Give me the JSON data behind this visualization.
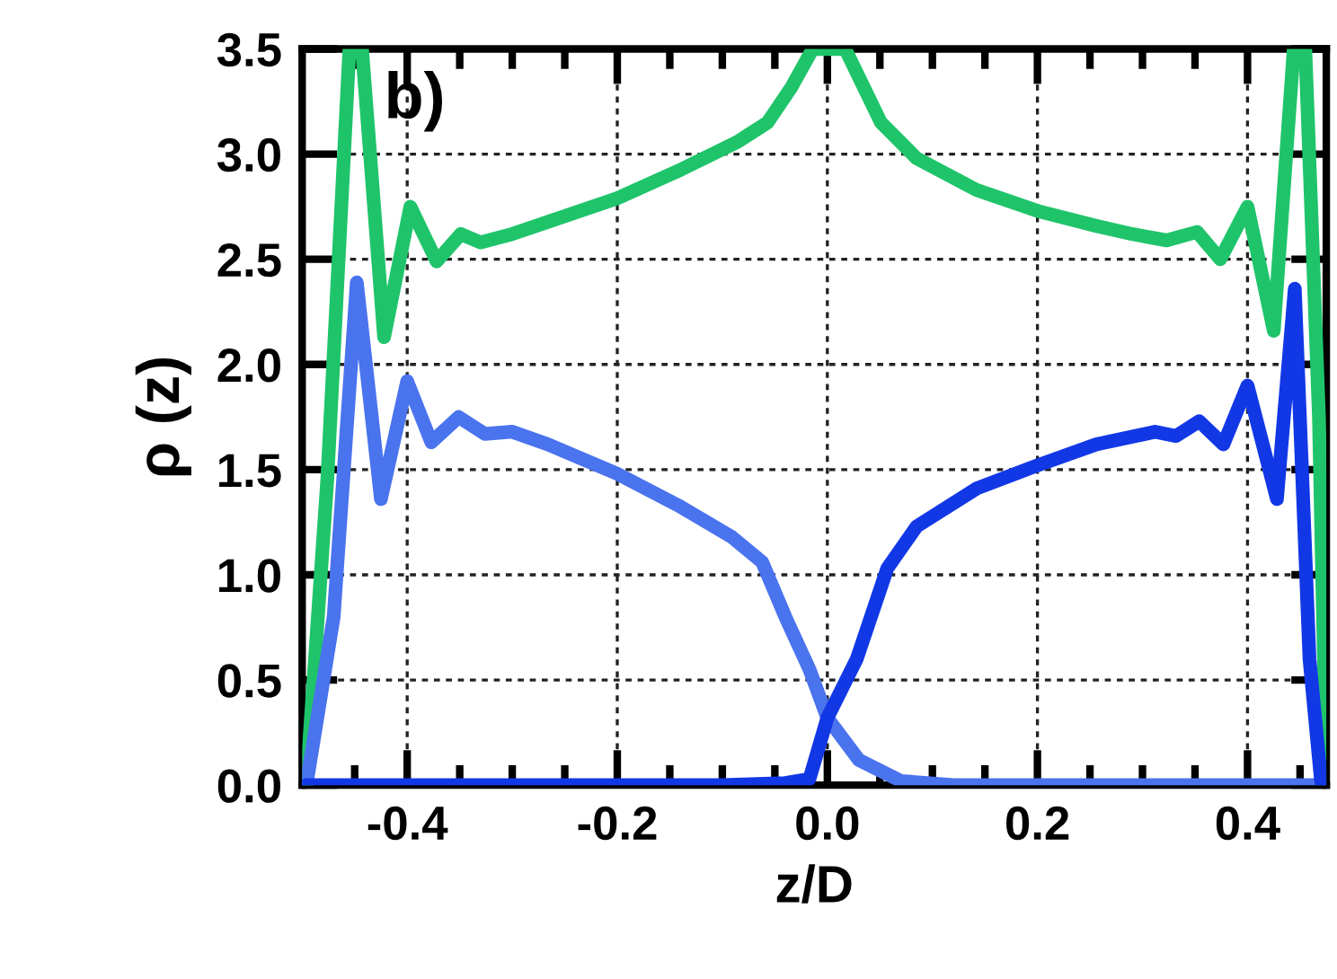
{
  "chart_data": {
    "type": "line",
    "xlabel": "z/D",
    "ylabel": "ρ (z)",
    "annotations": [
      "b)"
    ],
    "xlim": [
      -0.5,
      0.475
    ],
    "ylim": [
      0,
      3.5
    ],
    "xticks": [
      {
        "value": -0.45,
        "label": null
      },
      -0.4,
      {
        "value": -0.35,
        "label": null
      },
      {
        "value": -0.3,
        "label": null
      },
      {
        "value": -0.25,
        "label": null
      },
      -0.2,
      {
        "value": -0.15,
        "label": null
      },
      {
        "value": -0.1,
        "label": null
      },
      {
        "value": -0.05,
        "label": null
      },
      {
        "value": 0,
        "label": "0.0"
      },
      {
        "value": 0.05,
        "label": null
      },
      {
        "value": 0.1,
        "label": null
      },
      {
        "value": 0.15,
        "label": null
      },
      0.2,
      {
        "value": 0.25,
        "label": null
      },
      {
        "value": 0.3,
        "label": null
      },
      {
        "value": 0.35,
        "label": null
      },
      0.4,
      {
        "value": 0.45,
        "label": null
      }
    ],
    "yticks": [
      {
        "value": 0,
        "label": "0.0"
      },
      0.5,
      {
        "value": 1,
        "label": "1.0"
      },
      1.5,
      {
        "value": 2,
        "label": "2.0"
      },
      2.5,
      {
        "value": 3,
        "label": "3.0"
      },
      3.5
    ],
    "grid": true,
    "legend": false,
    "marker": "none",
    "line_style": "solid",
    "series": [
      {
        "color": "#1fc46a",
        "x": [
          -0.496,
          -0.476,
          -0.455,
          -0.443,
          -0.422,
          -0.397,
          -0.372,
          -0.349,
          -0.33,
          -0.3,
          -0.2,
          -0.142,
          -0.085,
          -0.057,
          -0.034,
          -0.014,
          0.0,
          0.017,
          0.051,
          0.085,
          0.142,
          0.2,
          0.255,
          0.29,
          0.323,
          0.352,
          0.374,
          0.4,
          0.425,
          0.444,
          0.455,
          0.468,
          0.475
        ],
        "values": [
          0.0,
          1.46,
          3.5,
          3.5,
          2.13,
          2.75,
          2.49,
          2.62,
          2.58,
          2.62,
          2.79,
          2.92,
          3.06,
          3.15,
          3.32,
          3.5,
          3.5,
          3.5,
          3.15,
          2.98,
          2.83,
          2.73,
          2.66,
          2.62,
          2.59,
          2.63,
          2.5,
          2.75,
          2.16,
          3.5,
          3.5,
          1.75,
          0.05
        ]
      },
      {
        "color": "#4a73ee",
        "x": [
          -0.496,
          -0.47,
          -0.448,
          -0.425,
          -0.4,
          -0.377,
          -0.351,
          -0.326,
          -0.3,
          -0.266,
          -0.2,
          -0.142,
          -0.091,
          -0.062,
          -0.04,
          -0.017,
          0.0,
          0.03,
          0.07,
          0.12,
          0.475
        ],
        "values": [
          0.0,
          0.8,
          2.39,
          1.36,
          1.92,
          1.63,
          1.75,
          1.67,
          1.68,
          1.62,
          1.48,
          1.33,
          1.18,
          1.06,
          0.8,
          0.55,
          0.32,
          0.12,
          0.02,
          0.0,
          0.0
        ]
      },
      {
        "color": "#1238e6",
        "x": [
          -0.496,
          -0.1,
          -0.04,
          -0.017,
          0.0,
          0.028,
          0.057,
          0.085,
          0.142,
          0.2,
          0.256,
          0.312,
          0.332,
          0.354,
          0.377,
          0.4,
          0.428,
          0.445,
          0.459,
          0.47,
          0.475
        ],
        "values": [
          0.0,
          0.0,
          0.01,
          0.03,
          0.32,
          0.6,
          1.03,
          1.23,
          1.41,
          1.52,
          1.62,
          1.68,
          1.66,
          1.73,
          1.62,
          1.9,
          1.36,
          2.36,
          0.6,
          0.02,
          0.0
        ]
      }
    ]
  }
}
